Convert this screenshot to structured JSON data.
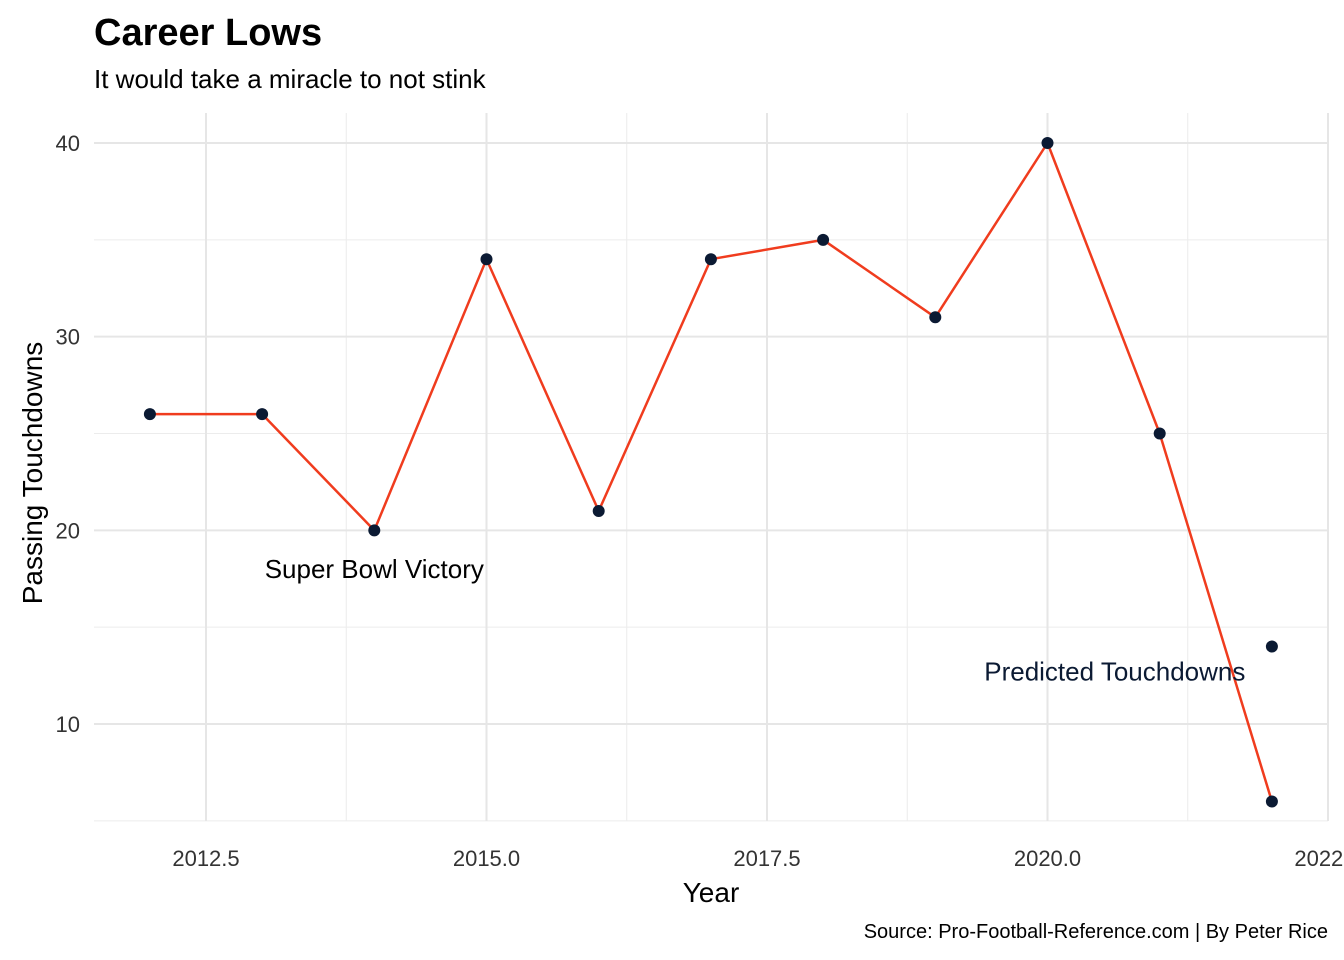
{
  "chart_data": {
    "type": "line",
    "title": "Career Lows",
    "subtitle": "It would take a miracle to not stink",
    "caption": "Source: Pro-Football-Reference.com | By Peter Rice",
    "xlabel": "Year",
    "ylabel": "Passing Touchdowns",
    "xlim": [
      2011.5,
      2022.5
    ],
    "ylim": [
      5,
      41.5
    ],
    "x_ticks": [
      2012.5,
      2015.0,
      2017.5,
      2020.0,
      2022.5
    ],
    "x_tick_labels": [
      "2012.5",
      "2015.0",
      "2017.5",
      "2020.0",
      "2022.5"
    ],
    "y_ticks": [
      10,
      20,
      30,
      40
    ],
    "y_tick_labels": [
      "10",
      "20",
      "30",
      "40"
    ],
    "grid": true,
    "series": [
      {
        "color": "#f03c1e",
        "point_color": "#0b1a33",
        "x": [
          2012,
          2013,
          2014,
          2015,
          2016,
          2017,
          2018,
          2019,
          2020,
          2021,
          2022
        ],
        "y": [
          26,
          26,
          20,
          34,
          21,
          34,
          35,
          31,
          40,
          25,
          6
        ]
      }
    ],
    "extra_points": [
      {
        "x": 2022,
        "y": 14,
        "color": "#0b1a33"
      }
    ],
    "annotations": [
      {
        "text": "Super Bowl Victory",
        "x": 2014,
        "y": 18,
        "color": "#000000"
      },
      {
        "text": "Predicted Touchdowns",
        "x": 2020.6,
        "y": 12.7,
        "color": "#0b1a33"
      }
    ]
  }
}
